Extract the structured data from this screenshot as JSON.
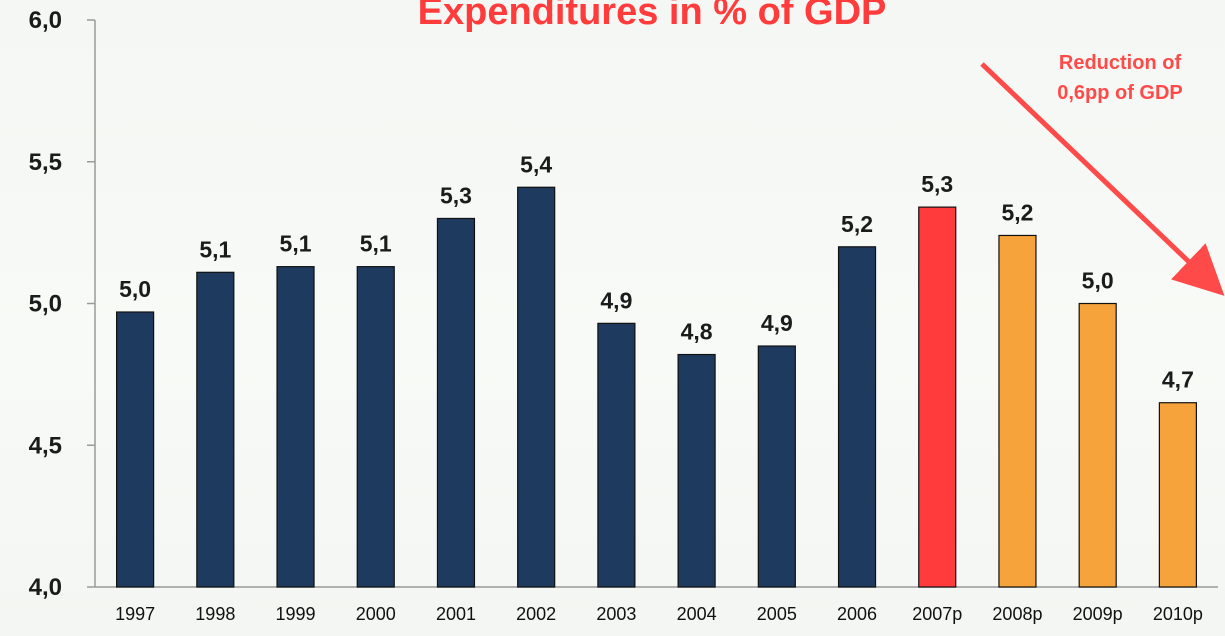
{
  "chart_data": {
    "type": "bar",
    "title": "Expenditures in % of GDP",
    "xlabel": "",
    "ylabel": "",
    "ylim": [
      4.0,
      6.0
    ],
    "yticks": [
      "4,0",
      "4,5",
      "5,0",
      "5,5",
      "6,0"
    ],
    "ytick_values": [
      4.0,
      4.5,
      5.0,
      5.5,
      6.0
    ],
    "grid": false,
    "legend": "none",
    "categories": [
      "1997",
      "1998",
      "1999",
      "2000",
      "2001",
      "2002",
      "2003",
      "2004",
      "2005",
      "2006",
      "2007p",
      "2008p",
      "2009p",
      "2010p"
    ],
    "values": [
      4.97,
      5.11,
      5.13,
      5.13,
      5.3,
      5.41,
      4.93,
      4.82,
      4.85,
      5.2,
      5.34,
      5.24,
      5.0,
      4.65
    ],
    "data_labels": [
      "5,0",
      "5,1",
      "5,1",
      "5,1",
      "5,3",
      "5,4",
      "4,9",
      "4,8",
      "4,9",
      "5,2",
      "5,3",
      "5,2",
      "5,0",
      "4,7"
    ],
    "bar_colors": [
      "#1f3a5f",
      "#1f3a5f",
      "#1f3a5f",
      "#1f3a5f",
      "#1f3a5f",
      "#1f3a5f",
      "#1f3a5f",
      "#1f3a5f",
      "#1f3a5f",
      "#1f3a5f",
      "#ff3b3b",
      "#f5a33a",
      "#f5a33a",
      "#f5a33a"
    ],
    "colors": {
      "actual": "#1f3a5f",
      "current": "#ff3b3b",
      "projected": "#f5a33a",
      "title": "#ff3b3b",
      "annotation": "#ff4a4a"
    },
    "annotation": {
      "lines": [
        "Reduction of",
        "0,6pp of GDP"
      ]
    }
  }
}
